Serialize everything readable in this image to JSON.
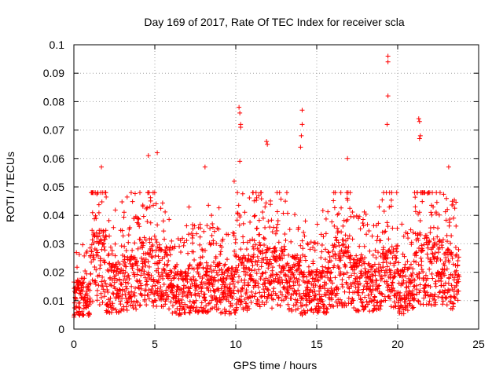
{
  "chart_data": {
    "type": "scatter",
    "title": "Day 169 of 2017, Rate Of TEC Index for receiver scla",
    "xlabel": "GPS time / hours",
    "ylabel": "ROTI / TECUs",
    "xlim": [
      0,
      25
    ],
    "ylim": [
      0,
      0.1
    ],
    "xticks": [
      0,
      5,
      10,
      15,
      20,
      25
    ],
    "xtick_labels": [
      "0",
      "5",
      "10",
      "15",
      "20",
      "25"
    ],
    "yticks": [
      0,
      0.01,
      0.02,
      0.03,
      0.04,
      0.05,
      0.06,
      0.07,
      0.08,
      0.09,
      0.1
    ],
    "ytick_labels": [
      "0",
      "0.01",
      "0.02",
      "0.03",
      "0.04",
      "0.05",
      "0.06",
      "0.07",
      "0.08",
      "0.09",
      "0.1"
    ],
    "grid": true,
    "marker": "+",
    "color": "#ff0000",
    "x_range_of_points": [
      0,
      23.8
    ],
    "notable_points": [
      {
        "x": 19.4,
        "y": 0.096
      },
      {
        "x": 19.4,
        "y": 0.094
      },
      {
        "x": 19.4,
        "y": 0.082
      },
      {
        "x": 19.35,
        "y": 0.072
      },
      {
        "x": 10.2,
        "y": 0.078
      },
      {
        "x": 10.25,
        "y": 0.076
      },
      {
        "x": 10.3,
        "y": 0.072
      },
      {
        "x": 10.3,
        "y": 0.071
      },
      {
        "x": 14.1,
        "y": 0.077
      },
      {
        "x": 14.1,
        "y": 0.072
      },
      {
        "x": 14.05,
        "y": 0.068
      },
      {
        "x": 14.0,
        "y": 0.064
      },
      {
        "x": 21.3,
        "y": 0.074
      },
      {
        "x": 21.35,
        "y": 0.073
      },
      {
        "x": 21.4,
        "y": 0.068
      },
      {
        "x": 21.35,
        "y": 0.067
      },
      {
        "x": 11.9,
        "y": 0.066
      },
      {
        "x": 11.95,
        "y": 0.065
      },
      {
        "x": 5.15,
        "y": 0.062
      },
      {
        "x": 4.6,
        "y": 0.061
      },
      {
        "x": 16.9,
        "y": 0.06
      },
      {
        "x": 10.25,
        "y": 0.059
      },
      {
        "x": 1.7,
        "y": 0.057
      },
      {
        "x": 8.1,
        "y": 0.057
      },
      {
        "x": 23.15,
        "y": 0.057
      },
      {
        "x": 9.9,
        "y": 0.052
      }
    ],
    "density_profile": [
      {
        "x": 0.5,
        "y_mean": 0.012
      },
      {
        "x": 1.5,
        "y_mean": 0.024
      },
      {
        "x": 2.5,
        "y_mean": 0.016
      },
      {
        "x": 3.5,
        "y_mean": 0.018
      },
      {
        "x": 4.5,
        "y_mean": 0.022
      },
      {
        "x": 5.5,
        "y_mean": 0.02
      },
      {
        "x": 6.5,
        "y_mean": 0.014
      },
      {
        "x": 7.5,
        "y_mean": 0.016
      },
      {
        "x": 8.5,
        "y_mean": 0.016
      },
      {
        "x": 9.5,
        "y_mean": 0.015
      },
      {
        "x": 10.5,
        "y_mean": 0.018
      },
      {
        "x": 11.5,
        "y_mean": 0.022
      },
      {
        "x": 12.5,
        "y_mean": 0.02
      },
      {
        "x": 13.5,
        "y_mean": 0.018
      },
      {
        "x": 14.5,
        "y_mean": 0.014
      },
      {
        "x": 15.5,
        "y_mean": 0.015
      },
      {
        "x": 16.5,
        "y_mean": 0.022
      },
      {
        "x": 17.5,
        "y_mean": 0.018
      },
      {
        "x": 18.5,
        "y_mean": 0.016
      },
      {
        "x": 19.5,
        "y_mean": 0.02
      },
      {
        "x": 20.5,
        "y_mean": 0.015
      },
      {
        "x": 21.5,
        "y_mean": 0.024
      },
      {
        "x": 22.5,
        "y_mean": 0.022
      },
      {
        "x": 23.5,
        "y_mean": 0.02
      }
    ]
  }
}
